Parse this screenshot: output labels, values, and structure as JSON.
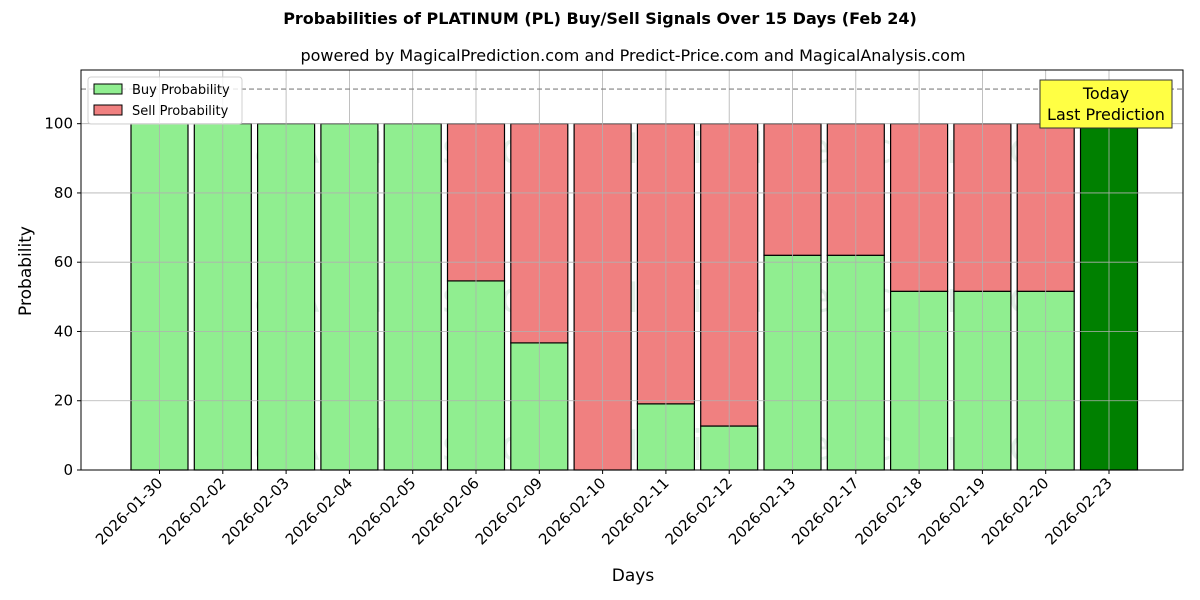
{
  "chart_data": {
    "type": "bar",
    "stacked": true,
    "title": "Probabilities of PLATINUM (PL) Buy/Sell Signals Over 15 Days (Feb 24)",
    "subtitle": "powered by MagicalPrediction.com and Predict-Price.com and MagicalAnalysis.com",
    "xlabel": "Days",
    "ylabel": "Probability",
    "ylim": [
      0,
      115.5
    ],
    "yticks": [
      0,
      20,
      40,
      60,
      80,
      100
    ],
    "grid": true,
    "legend_position": "upper left",
    "categories": [
      "2026-01-30",
      "2026-02-02",
      "2026-02-03",
      "2026-02-04",
      "2026-02-05",
      "2026-02-06",
      "2026-02-09",
      "2026-02-10",
      "2026-02-11",
      "2026-02-12",
      "2026-02-13",
      "2026-02-17",
      "2026-02-18",
      "2026-02-19",
      "2026-02-20",
      "2026-02-23"
    ],
    "series": [
      {
        "name": "Buy Probability",
        "color": "#90ee90",
        "values": [
          100,
          100,
          100,
          100,
          100,
          54.6,
          36.7,
          0,
          19.1,
          12.7,
          62.0,
          62.0,
          51.6,
          51.6,
          51.6,
          100
        ]
      },
      {
        "name": "Sell Probability",
        "color": "#f08080",
        "values": [
          0,
          0,
          0,
          0,
          0,
          45.4,
          63.3,
          100,
          80.9,
          87.3,
          38.0,
          38.0,
          48.4,
          48.4,
          48.4,
          0
        ]
      }
    ],
    "highlight": {
      "category": "2026-02-23",
      "color": "#008000",
      "value": 100
    },
    "reference_line": {
      "y": 110,
      "style": "dashed",
      "color": "#808080"
    },
    "annotation": {
      "text_line1": "Today",
      "text_line2": "Last Prediction",
      "background": "#ffff44"
    },
    "watermarks": [
      "MagicalAnalysis.com",
      "MagicalPrediction.com"
    ]
  }
}
